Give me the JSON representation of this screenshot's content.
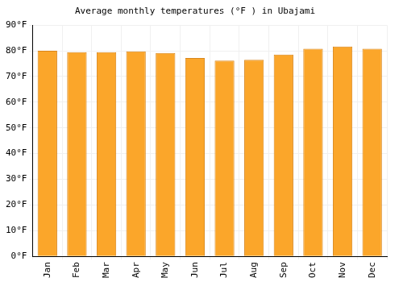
{
  "chart_data": {
    "type": "bar",
    "title": "Average monthly temperatures (°F ) in Ubajami",
    "categories": [
      "Jan",
      "Feb",
      "Mar",
      "Apr",
      "May",
      "Jun",
      "Jul",
      "Aug",
      "Sep",
      "Oct",
      "Nov",
      "Dec"
    ],
    "values": [
      80,
      79.5,
      79.5,
      79.8,
      79.2,
      77.2,
      76.2,
      76.5,
      78.5,
      80.8,
      81.7,
      80.8
    ],
    "color": "#fba62a",
    "ylim": [
      0,
      90
    ],
    "yticks": [
      {
        "value": 0,
        "label": "0°F"
      },
      {
        "value": 10,
        "label": "10°F"
      },
      {
        "value": 20,
        "label": "20°F"
      },
      {
        "value": 30,
        "label": "30°F"
      },
      {
        "value": 40,
        "label": "40°F"
      },
      {
        "value": 50,
        "label": "50°F"
      },
      {
        "value": 60,
        "label": "60°F"
      },
      {
        "value": 70,
        "label": "70°F"
      },
      {
        "value": 80,
        "label": "80°F"
      },
      {
        "value": 90,
        "label": "90°F"
      }
    ],
    "grid": true
  }
}
